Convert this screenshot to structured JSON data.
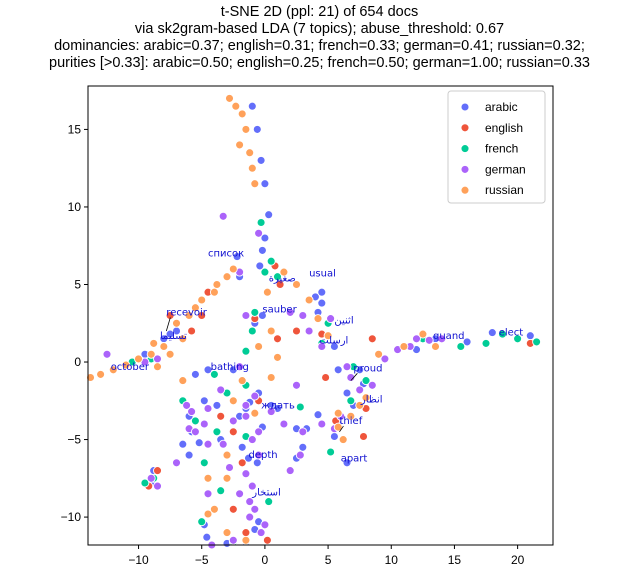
{
  "chart_data": {
    "type": "scatter",
    "title_lines": [
      "t-SNE 2D (ppl: 21) of 654 docs",
      "via sk2gram-based LDA (7 topics); abuse_threshold: 0.67",
      "dominancies: arabic=0.37; english=0.31; french=0.33; german=0.41; russian=0.32;",
      "purities [>0.33]: arabic=0.50; english=0.25; french=0.50; german=1.00; russian=0.33"
    ],
    "xlim": [
      -14,
      22.8
    ],
    "ylim": [
      -11.8,
      17.8
    ],
    "x_ticks": [
      -10,
      -5,
      0,
      5,
      10,
      15,
      20
    ],
    "y_ticks": [
      -10,
      -5,
      0,
      5,
      10,
      15
    ],
    "x_tick_labels": [
      "−10",
      "−5",
      "0",
      "5",
      "10",
      "15",
      "20"
    ],
    "y_tick_labels": [
      "−10",
      "−5",
      "0",
      "5",
      "10",
      "15"
    ],
    "grid": false,
    "legend_position": "top-right",
    "series": [
      {
        "name": "arabic",
        "color": "#636efa",
        "points": [
          [
            -1.0,
            16.5
          ],
          [
            -0.6,
            15.0
          ],
          [
            -0.3,
            13.0
          ],
          [
            0.0,
            11.5
          ],
          [
            0.3,
            9.5
          ],
          [
            0.0,
            8.0
          ],
          [
            -0.2,
            7.2
          ],
          [
            -0.4,
            6.2
          ],
          [
            -0.2,
            3.0
          ],
          [
            -0.8,
            2.5
          ],
          [
            4.0,
            4.2
          ],
          [
            4.5,
            3.8
          ],
          [
            4.2,
            3.2
          ],
          [
            5.5,
            1.0
          ],
          [
            5.8,
            -0.5
          ],
          [
            -5.5,
            -0.8
          ],
          [
            -4.5,
            -0.5
          ],
          [
            -4.8,
            -2.5
          ],
          [
            -3.8,
            -2.8
          ],
          [
            -1.5,
            -3.0
          ],
          [
            -0.5,
            -2.0
          ],
          [
            0.5,
            -2.8
          ],
          [
            -2.0,
            -3.5
          ],
          [
            -0.2,
            -4.2
          ],
          [
            -3.5,
            -5.0
          ],
          [
            -1.8,
            -5.5
          ],
          [
            -1.3,
            -6.2
          ],
          [
            -0.6,
            -6.5
          ],
          [
            -9.0,
            -7.8
          ],
          [
            -8.8,
            -7.0
          ],
          [
            -4.8,
            -10.5
          ],
          [
            -4.6,
            -11.3
          ],
          [
            -3.0,
            -11.7
          ],
          [
            -1.5,
            -11.6
          ],
          [
            -0.8,
            -10.8
          ],
          [
            -0.5,
            -10.3
          ],
          [
            12.0,
            0.8
          ],
          [
            13.5,
            1.5
          ],
          [
            16.0,
            1.3
          ],
          [
            18.0,
            1.9
          ],
          [
            21.0,
            1.7
          ],
          [
            7.5,
            -0.5
          ],
          [
            7.8,
            -1.4
          ],
          [
            6.5,
            -2.0
          ],
          [
            7.0,
            -2.8
          ],
          [
            5.8,
            -4.0
          ],
          [
            5.5,
            -4.8
          ],
          [
            6.5,
            -6.5
          ],
          [
            -2.0,
            5.5
          ],
          [
            -2.2,
            6.8
          ],
          [
            -7.0,
            2.0
          ],
          [
            -7.5,
            1.8
          ],
          [
            -8.0,
            1.5
          ],
          [
            -9.5,
            0.5
          ],
          [
            -6.0,
            -3.5
          ],
          [
            -5.8,
            -4.5
          ],
          [
            -5.2,
            -5.2
          ],
          [
            -6.5,
            -5.3
          ],
          [
            -6.0,
            -6.0
          ],
          [
            2.5,
            -4.3
          ],
          [
            3.3,
            -4.3
          ],
          [
            4.2,
            -3.4
          ],
          [
            3.0,
            -5.5
          ],
          [
            2.5,
            -6.2
          ],
          [
            4.5,
            4.5
          ],
          [
            1.0,
            -3.0
          ],
          [
            -1.2,
            -2.6
          ],
          [
            -2.5,
            -0.5
          ]
        ]
      },
      {
        "name": "english",
        "color": "#ef553b",
        "points": [
          [
            0.8,
            6.2
          ],
          [
            1.2,
            5.0
          ],
          [
            2.5,
            2.0
          ],
          [
            -0.5,
            -2.5
          ],
          [
            -3.5,
            -3.5
          ],
          [
            -2.5,
            -4.5
          ],
          [
            -8.5,
            -7.0
          ],
          [
            -9.2,
            -8.0
          ],
          [
            -2.5,
            -9.5
          ],
          [
            -1.5,
            -11.0
          ],
          [
            0.2,
            -11.5
          ],
          [
            4.5,
            1.8
          ],
          [
            8.0,
            -3.0
          ],
          [
            7.8,
            -4.8
          ],
          [
            5.6,
            -3.8
          ],
          [
            8.5,
            1.5
          ],
          [
            -0.8,
            2.8
          ],
          [
            -7.5,
            3.0
          ],
          [
            -5.0,
            3.0
          ],
          [
            -1.8,
            -6.5
          ],
          [
            1.0,
            1.5
          ],
          [
            4.8,
            -1.0
          ],
          [
            21.0,
            1.2
          ],
          [
            -4.5,
            4.5
          ],
          [
            -5.8,
            2.0
          ]
        ]
      },
      {
        "name": "french",
        "color": "#00cc96",
        "points": [
          [
            0.5,
            6.5
          ],
          [
            0.0,
            5.8
          ],
          [
            1.0,
            5.5
          ],
          [
            -0.3,
            9.0
          ],
          [
            -1.0,
            2.0
          ],
          [
            -1.5,
            -1.5
          ],
          [
            -3.0,
            -2.0
          ],
          [
            -3.8,
            -4.5
          ],
          [
            -1.5,
            -4.8
          ],
          [
            -4.8,
            -6.5
          ],
          [
            -8.8,
            -7.5
          ],
          [
            -9.5,
            -7.8
          ],
          [
            0.3,
            -9.0
          ],
          [
            -5.0,
            -10.3
          ],
          [
            -2.5,
            -11.6
          ],
          [
            8.0,
            -1.2
          ],
          [
            6.8,
            -2.5
          ],
          [
            5.2,
            -5.8
          ],
          [
            7.0,
            -0.3
          ],
          [
            12.5,
            1.5
          ],
          [
            15.5,
            1.0
          ],
          [
            17.5,
            1.2
          ],
          [
            18.8,
            1.8
          ],
          [
            20.0,
            1.5
          ],
          [
            21.5,
            1.3
          ],
          [
            5.0,
            2.5
          ],
          [
            -6.5,
            -2.5
          ],
          [
            -1.5,
            0.7
          ],
          [
            -9.0,
            0.2
          ],
          [
            -10.5,
            0.0
          ],
          [
            -4.0,
            -0.8
          ],
          [
            4.5,
            1.2
          ],
          [
            -0.8,
            3.2
          ],
          [
            -5.5,
            -3.8
          ],
          [
            -3.5,
            -8.3
          ],
          [
            2.8,
            -2.9
          ]
        ]
      },
      {
        "name": "german",
        "color": "#ab63fa",
        "points": [
          [
            -3.3,
            9.4
          ],
          [
            -0.5,
            8.3
          ],
          [
            -2.0,
            5.8
          ],
          [
            -1.5,
            3.0
          ],
          [
            -0.8,
            -2.2
          ],
          [
            -1.5,
            -3.5
          ],
          [
            -2.5,
            -3.8
          ],
          [
            -0.5,
            -4.5
          ],
          [
            -4.5,
            -3.0
          ],
          [
            -5.8,
            -3.2
          ],
          [
            -6.0,
            -4.3
          ],
          [
            -5.5,
            -4.5
          ],
          [
            -4.5,
            -5.3
          ],
          [
            -7.0,
            -6.5
          ],
          [
            -9.0,
            -7.5
          ],
          [
            -8.5,
            -8.0
          ],
          [
            -4.5,
            -8.5
          ],
          [
            -1.0,
            -8.0
          ],
          [
            -1.2,
            -9.0
          ],
          [
            -0.8,
            -9.5
          ],
          [
            -1.2,
            -10.0
          ],
          [
            0.0,
            -10.5
          ],
          [
            -0.3,
            -11.0
          ],
          [
            -2.5,
            -11.5
          ],
          [
            -4.2,
            -11.8
          ],
          [
            2.0,
            3.2
          ],
          [
            3.0,
            3.0
          ],
          [
            3.5,
            2.0
          ],
          [
            4.5,
            1.0
          ],
          [
            2.5,
            -1.5
          ],
          [
            1.5,
            -4.0
          ],
          [
            3.0,
            -4.5
          ],
          [
            4.5,
            -4.0
          ],
          [
            2.8,
            -6.0
          ],
          [
            2.0,
            -7.0
          ],
          [
            5.5,
            -4.3
          ],
          [
            6.8,
            -1.0
          ],
          [
            7.5,
            -1.8
          ],
          [
            8.5,
            -1.5
          ],
          [
            6.0,
            -3.5
          ],
          [
            10.5,
            0.8
          ],
          [
            11.5,
            1.0
          ],
          [
            12.0,
            1.5
          ],
          [
            13.0,
            1.4
          ],
          [
            14.0,
            1.5
          ],
          [
            -12.5,
            0.5
          ],
          [
            -9.5,
            0.0
          ],
          [
            -8.5,
            0.2
          ],
          [
            -3.5,
            -1.8
          ],
          [
            -1.5,
            -2.8
          ],
          [
            5.2,
            2.8
          ],
          [
            -0.5,
            -6.0
          ],
          [
            -1.5,
            -7.2
          ],
          [
            -2.0,
            -8.5
          ],
          [
            9.5,
            0.2
          ],
          [
            -2.0,
            -0.3
          ],
          [
            0.5,
            -3.2
          ],
          [
            -3.3,
            -5.3
          ],
          [
            -1.0,
            -5.0
          ],
          [
            -2.8,
            -6.8
          ],
          [
            -4.8,
            -4.0
          ],
          [
            -6.2,
            -2.8
          ],
          [
            6.5,
            -0.3
          ]
        ]
      },
      {
        "name": "russian",
        "color": "#ffa15a",
        "points": [
          [
            -2.8,
            17.0
          ],
          [
            -2.3,
            16.5
          ],
          [
            -1.8,
            16.0
          ],
          [
            -1.5,
            15.0
          ],
          [
            -2.0,
            14.0
          ],
          [
            -1.2,
            13.5
          ],
          [
            -1.0,
            12.5
          ],
          [
            -0.8,
            11.5
          ],
          [
            -3.0,
            5.5
          ],
          [
            -3.8,
            5.0
          ],
          [
            -5.0,
            4.0
          ],
          [
            -6.0,
            3.0
          ],
          [
            -7.0,
            2.5
          ],
          [
            -8.0,
            1.0
          ],
          [
            -9.0,
            0.5
          ],
          [
            -10.0,
            0.2
          ],
          [
            -11.0,
            -0.2
          ],
          [
            -12.0,
            -0.5
          ],
          [
            -13.0,
            -0.8
          ],
          [
            -13.8,
            -1.0
          ],
          [
            0.2,
            4.5
          ],
          [
            1.5,
            5.8
          ],
          [
            2.5,
            5.0
          ],
          [
            3.5,
            4.0
          ],
          [
            4.2,
            2.8
          ],
          [
            5.0,
            1.7
          ],
          [
            -4.0,
            -9.5
          ],
          [
            -3.0,
            -11.0
          ],
          [
            -1.5,
            -11.5
          ],
          [
            5.8,
            -3.3
          ],
          [
            5.8,
            -4.2
          ],
          [
            6.2,
            -5.0
          ],
          [
            6.8,
            -3.5
          ],
          [
            7.5,
            -2.8
          ],
          [
            8.0,
            -2.3
          ],
          [
            -0.5,
            1.0
          ],
          [
            0.5,
            -1.0
          ],
          [
            -2.5,
            -2.5
          ],
          [
            -3.0,
            -6.0
          ],
          [
            -3.0,
            -7.5
          ],
          [
            -4.5,
            -9.8
          ],
          [
            -6.5,
            -1.2
          ],
          [
            -8.8,
            1.2
          ],
          [
            -6.5,
            1.5
          ],
          [
            -5.5,
            3.5
          ],
          [
            -4.0,
            4.5
          ],
          [
            -2.5,
            6.0
          ],
          [
            0.5,
            2.0
          ],
          [
            1.0,
            0.3
          ],
          [
            9.0,
            0.5
          ],
          [
            11.0,
            1.0
          ],
          [
            12.5,
            1.8
          ],
          [
            13.5,
            1.0
          ],
          [
            -7.5,
            0.5
          ],
          [
            -8.5,
            -0.3
          ],
          [
            -1.8,
            -1.2
          ],
          [
            -0.8,
            -3.3
          ],
          [
            -4.5,
            -7.5
          ]
        ]
      }
    ],
    "annotations": [
      {
        "text": "список",
        "x": -4.5,
        "y": 6.8
      },
      {
        "text": "صغيرة",
        "x": 0.3,
        "y": 5.2,
        "dir": "rtl"
      },
      {
        "text": "usual",
        "x": 3.5,
        "y": 5.5
      },
      {
        "text": "sauber",
        "x": -0.2,
        "y": 3.2
      },
      {
        "text": "recevoir",
        "x": -7.8,
        "y": 3.0,
        "arrow_to": [
          -7.8,
          2.0
        ]
      },
      {
        "text": "اثنين",
        "x": 5.5,
        "y": 2.5,
        "dir": "rtl"
      },
      {
        "text": "تسليما",
        "x": -8.3,
        "y": 1.5,
        "dir": "rtl"
      },
      {
        "text": "quand",
        "x": 13.3,
        "y": 1.5
      },
      {
        "text": "elect",
        "x": 18.5,
        "y": 1.7
      },
      {
        "text": "ارسلت",
        "x": 4.3,
        "y": 1.2,
        "dir": "rtl"
      },
      {
        "text": "october",
        "x": -12.2,
        "y": -0.5
      },
      {
        "text": "bathing",
        "x": -4.3,
        "y": -0.5
      },
      {
        "text": "proud",
        "x": 7.0,
        "y": -0.6,
        "arrow_to": [
          6.8,
          -1.2
        ]
      },
      {
        "text": "انظار",
        "x": 7.6,
        "y": -2.6,
        "dir": "rtl"
      },
      {
        "text": "ждать",
        "x": -0.3,
        "y": -3.0
      },
      {
        "text": "thief",
        "x": 5.9,
        "y": -4.0,
        "arrow_to": [
          5.9,
          -4.5
        ]
      },
      {
        "text": "depth",
        "x": -1.3,
        "y": -6.2
      },
      {
        "text": "apart",
        "x": 6.0,
        "y": -6.4
      },
      {
        "text": "استخار",
        "x": -1.0,
        "y": -8.6,
        "dir": "rtl"
      }
    ]
  }
}
